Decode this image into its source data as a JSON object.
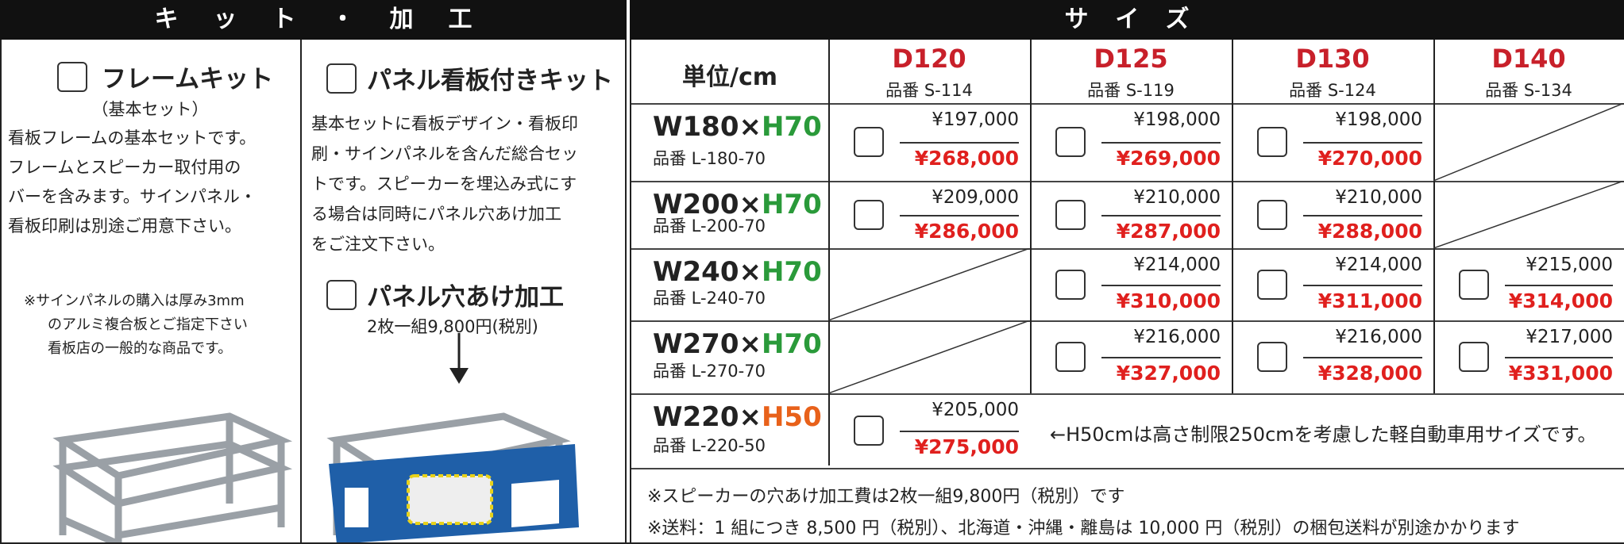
{
  "left_header": "キット・加工",
  "right_header": "サイズ",
  "frame_kit": {
    "title": "フレームキット",
    "subtitle": "（基本セット）",
    "description": [
      "看板フレームの基本セットです。",
      "フレームとスピーカー取付用の",
      "バーを含みます。サインパネル・",
      "看板印刷は別途ご用意下さい。"
    ],
    "note": [
      "※サインパネルの購入は厚み3mm",
      "のアルミ複合板とご指定下さい",
      "看板店の一般的な商品です。"
    ]
  },
  "panel_kit": {
    "title": "パネル看板付きキット",
    "description": [
      "基本セットに看板デザイン・看板印",
      "刷・サインパネルを含んだ総合セッ",
      "トです。スピーカーを埋込み式にす",
      "る場合は同時にパネル穴あけ加工",
      "をご注文下さい。"
    ]
  },
  "panel_hole": {
    "title": "パネル穴あけ加工",
    "price": "2枚一組9,800円(税別)"
  },
  "table": {
    "unit_header": "単位/cm",
    "columns": [
      {
        "depth": "D120",
        "code": "品番 S-114"
      },
      {
        "depth": "D125",
        "code": "品番 S-119"
      },
      {
        "depth": "D130",
        "code": "品番 S-124"
      },
      {
        "depth": "D140",
        "code": "品番 S-134"
      }
    ],
    "rows": [
      {
        "width": "W180×",
        "height": "H70",
        "code": "品番 L-180-70",
        "cells": [
          {
            "price": "¥197,000",
            "set_price": "¥268,000"
          },
          {
            "price": "¥198,000",
            "set_price": "¥269,000"
          },
          {
            "price": "¥198,000",
            "set_price": "¥270,000"
          },
          null
        ]
      },
      {
        "width": "W200×",
        "height": "H70",
        "code": "品番 L-200-70",
        "cells": [
          {
            "price": "¥209,000",
            "set_price": "¥286,000"
          },
          {
            "price": "¥210,000",
            "set_price": "¥287,000"
          },
          {
            "price": "¥210,000",
            "set_price": "¥288,000"
          },
          null
        ]
      },
      {
        "width": "W240×",
        "height": "H70",
        "code": "品番 L-240-70",
        "cells": [
          null,
          {
            "price": "¥214,000",
            "set_price": "¥310,000"
          },
          {
            "price": "¥214,000",
            "set_price": "¥311,000"
          },
          {
            "price": "¥215,000",
            "set_price": "¥314,000"
          }
        ]
      },
      {
        "width": "W270×",
        "height": "H70",
        "code": "品番 L-270-70",
        "cells": [
          null,
          {
            "price": "¥216,000",
            "set_price": "¥327,000"
          },
          {
            "price": "¥216,000",
            "set_price": "¥328,000"
          },
          {
            "price": "¥217,000",
            "set_price": "¥331,000"
          }
        ]
      },
      {
        "width": "W220×",
        "height": "H50",
        "code": "品番 L-220-50",
        "cells": [
          {
            "price": "¥205,000",
            "set_price": "¥275,000"
          }
        ],
        "remark": "←H50cmは高さ制限250cmを考慮した軽自動車用サイズです。"
      }
    ],
    "footnotes": [
      "※スピーカーの穴あけ加工費は2枚一組9,800円（税別）です",
      "※送料：1 組につき 8,500 円（税別）、北海道・沖縄・離島は 10,000 円（税別）の梱包送料が別途かかります"
    ]
  }
}
